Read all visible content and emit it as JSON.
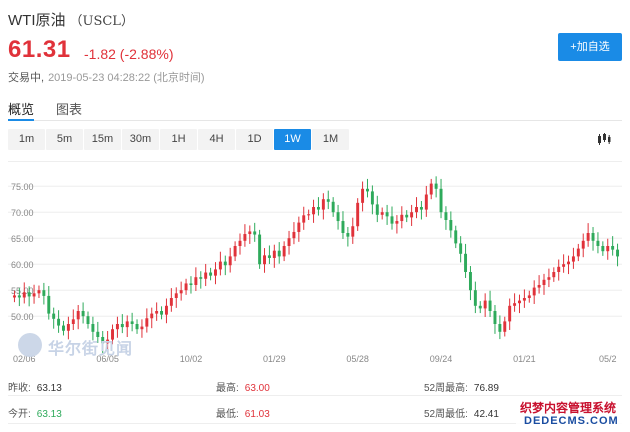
{
  "header": {
    "name": "WTI原油",
    "code": "（USCL）",
    "price": "61.31",
    "change": "-1.82 (-2.88%)",
    "status": "交易中,",
    "time": "2019-05-23 04:28:22 (北京时间)",
    "add_button": "+加自选"
  },
  "tabs": [
    {
      "label": "概览",
      "active": true
    },
    {
      "label": "图表",
      "active": false
    }
  ],
  "periods": [
    {
      "label": "1m",
      "active": false
    },
    {
      "label": "5m",
      "active": false
    },
    {
      "label": "15m",
      "active": false
    },
    {
      "label": "30m",
      "active": false
    },
    {
      "label": "1H",
      "active": false
    },
    {
      "label": "4H",
      "active": false
    },
    {
      "label": "1D",
      "active": false
    },
    {
      "label": "1W",
      "active": true
    },
    {
      "label": "1M",
      "active": false
    }
  ],
  "chart_icon": "candlestick-icon",
  "colors": {
    "up": "#e0323a",
    "down": "#2eaa5b",
    "accent": "#1a8be6"
  },
  "chart_data": {
    "type": "candlestick",
    "title": "",
    "xlabel": "",
    "ylabel": "",
    "ylim": [
      43.5,
      78.5
    ],
    "yticks": [
      "75.00",
      "70.00",
      "65.00",
      "60.00",
      "55.00",
      "50.00"
    ],
    "xticks": [
      {
        "label": "02/06",
        "i": 2
      },
      {
        "label": "06/05",
        "i": 19
      },
      {
        "label": "10/02",
        "i": 36
      },
      {
        "label": "01/29",
        "i": 53
      },
      {
        "label": "05/28",
        "i": 70
      },
      {
        "label": "09/24",
        "i": 87
      },
      {
        "label": "01/21",
        "i": 104
      },
      {
        "label": "05/2",
        "i": 121
      }
    ],
    "closes": [
      54.0,
      53.6,
      54.6,
      53.8,
      54.4,
      55.0,
      53.9,
      50.5,
      49.5,
      48.2,
      47.2,
      48.5,
      49.4,
      51.0,
      50.0,
      48.5,
      47.0,
      46.0,
      44.8,
      45.5,
      47.5,
      48.5,
      47.9,
      49.0,
      48.5,
      47.5,
      48.0,
      49.6,
      50.5,
      51.0,
      50.3,
      52.0,
      53.5,
      54.4,
      55.0,
      56.3,
      56.0,
      57.5,
      57.2,
      58.4,
      57.8,
      59.0,
      60.5,
      59.8,
      61.5,
      63.5,
      64.5,
      65.8,
      66.3,
      65.7,
      60.0,
      61.7,
      61.2,
      62.6,
      61.5,
      63.5,
      65.0,
      66.2,
      68.0,
      69.4,
      69.6,
      71.0,
      70.5,
      72.5,
      72.0,
      70.0,
      68.3,
      66.0,
      65.3,
      67.3,
      71.8,
      74.5,
      74.0,
      71.5,
      69.5,
      70.0,
      69.2,
      67.8,
      68.3,
      69.5,
      69.0,
      70.0,
      71.0,
      70.5,
      73.4,
      75.5,
      74.5,
      70.0,
      68.5,
      66.5,
      64.0,
      62.0,
      58.5,
      55.0,
      52.0,
      51.5,
      53.0,
      51.0,
      48.5,
      47.0,
      49.0,
      52.0,
      52.5,
      53.0,
      53.5,
      54.0,
      55.5,
      56.0,
      57.0,
      57.5,
      58.5,
      59.5,
      60.0,
      60.5,
      61.5,
      63.0,
      64.5,
      66.0,
      64.5,
      63.5,
      62.5,
      63.5,
      62.8,
      61.5
    ]
  },
  "watermark_logo": "华尔街见闻",
  "stats": [
    {
      "label": "昨收:",
      "value": "63.13",
      "tone": "dark"
    },
    {
      "label": "最高:",
      "value": "63.00",
      "tone": "red"
    },
    {
      "label": "52周最高:",
      "value": "76.89",
      "tone": "dark"
    },
    {
      "label": "今开:",
      "value": "63.13",
      "tone": "green"
    },
    {
      "label": "最低:",
      "value": "61.03",
      "tone": "red"
    },
    {
      "label": "52周最低:",
      "value": "42.41",
      "tone": "dark"
    }
  ],
  "site_watermark": {
    "line1": "织梦内容管理系统",
    "line2": "DEDECMS.COM"
  }
}
